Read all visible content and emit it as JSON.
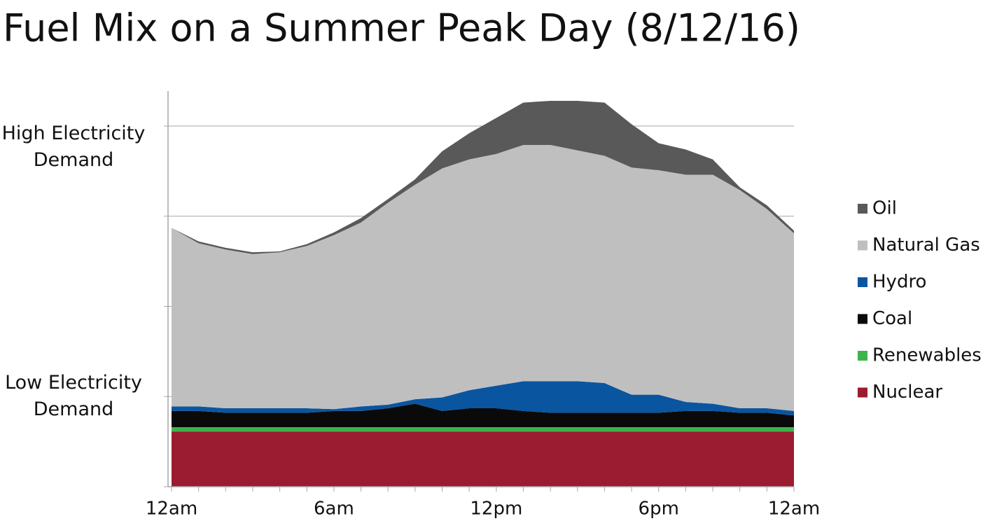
{
  "chart_data": {
    "type": "stacked_area",
    "title": "Fuel Mix on a Summer Peak Day (8/12/16)",
    "categories": [
      "12am",
      null,
      null,
      null,
      null,
      null,
      "6am",
      null,
      null,
      null,
      null,
      null,
      "12pm",
      null,
      null,
      null,
      null,
      null,
      "6pm",
      null,
      null,
      null,
      null,
      "12am"
    ],
    "series": [
      {
        "name": "Nuclear",
        "color": "#9b1b30",
        "values": [
          0.61,
          0.61,
          0.61,
          0.61,
          0.61,
          0.61,
          0.61,
          0.61,
          0.61,
          0.61,
          0.61,
          0.61,
          0.61,
          0.61,
          0.61,
          0.61,
          0.61,
          0.61,
          0.61,
          0.61,
          0.61,
          0.61,
          0.61,
          0.61
        ]
      },
      {
        "name": "Renewables",
        "color": "#3cb44b",
        "values": [
          0.05,
          0.05,
          0.05,
          0.05,
          0.05,
          0.05,
          0.05,
          0.05,
          0.05,
          0.05,
          0.05,
          0.05,
          0.05,
          0.05,
          0.05,
          0.05,
          0.05,
          0.05,
          0.05,
          0.05,
          0.05,
          0.05,
          0.05,
          0.05
        ]
      },
      {
        "name": "Coal",
        "color": "#0a0a0a",
        "values": [
          0.18,
          0.18,
          0.16,
          0.16,
          0.16,
          0.16,
          0.18,
          0.18,
          0.21,
          0.26,
          0.18,
          0.21,
          0.21,
          0.18,
          0.16,
          0.16,
          0.16,
          0.16,
          0.16,
          0.18,
          0.18,
          0.16,
          0.16,
          0.13
        ]
      },
      {
        "name": "Hydro",
        "color": "#0a55a0",
        "values": [
          0.05,
          0.05,
          0.05,
          0.05,
          0.05,
          0.05,
          0.02,
          0.05,
          0.04,
          0.05,
          0.15,
          0.2,
          0.25,
          0.33,
          0.35,
          0.35,
          0.33,
          0.2,
          0.2,
          0.1,
          0.08,
          0.05,
          0.05,
          0.05
        ]
      },
      {
        "name": "Natural Gas",
        "color": "#bfbfbf",
        "values": [
          1.98,
          1.81,
          1.76,
          1.71,
          1.73,
          1.8,
          1.93,
          2.04,
          2.24,
          2.38,
          2.54,
          2.56,
          2.57,
          2.62,
          2.62,
          2.56,
          2.52,
          2.52,
          2.49,
          2.52,
          2.54,
          2.42,
          2.21,
          1.97
        ]
      },
      {
        "name": "Oil",
        "color": "#595959",
        "values": [
          0,
          0.02,
          0.02,
          0.02,
          0.01,
          0.02,
          0.03,
          0.05,
          0.04,
          0.06,
          0.19,
          0.29,
          0.4,
          0.47,
          0.49,
          0.55,
          0.59,
          0.48,
          0.3,
          0.28,
          0.17,
          0.03,
          0.04,
          0.03
        ]
      }
    ],
    "ylim": [
      0,
      4.4
    ],
    "yticks": [
      {
        "value": 1,
        "label": "Low Electricity Demand"
      },
      {
        "value": 4,
        "label": "High Electricity Demand"
      }
    ],
    "ytick_marks": [
      0,
      1,
      2,
      3,
      4
    ],
    "grid": true,
    "legend": "right"
  }
}
